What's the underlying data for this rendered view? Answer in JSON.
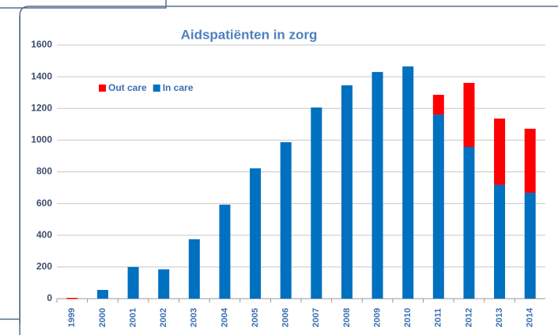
{
  "chart_data": {
    "type": "stacked-bar",
    "title": "Aidspatiënten in zorg",
    "categories": [
      "1999",
      "2000",
      "2001",
      "2002",
      "2003",
      "2004",
      "2005",
      "2006",
      "2007",
      "2008",
      "2009",
      "2010",
      "2011",
      "2012",
      "2013",
      "2014"
    ],
    "series": [
      {
        "name": "In care",
        "color": "#0070c0",
        "values": [
          0,
          55,
          200,
          185,
          375,
          593,
          822,
          987,
          1206,
          1346,
          1430,
          1465,
          1161,
          957,
          718,
          668
        ]
      },
      {
        "name": "Out care",
        "color": "#ff0000",
        "values": [
          5,
          null,
          null,
          null,
          null,
          null,
          null,
          null,
          null,
          null,
          null,
          null,
          125,
          404,
          418,
          404
        ]
      }
    ],
    "ylim": [
      0,
      1600
    ],
    "yticks": [
      0,
      200,
      400,
      600,
      800,
      1000,
      1200,
      1400,
      1600
    ],
    "grid": true
  }
}
